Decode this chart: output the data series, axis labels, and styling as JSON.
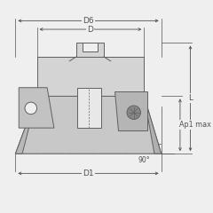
{
  "bg_color": "#efefef",
  "line_color": "#606060",
  "dim_color": "#505050",
  "body_fill": "#d4d4d4",
  "body_edge": "#606060",
  "dark_fill": "#aaaaaa",
  "light_fill": "#e2e2e2",
  "insert_fill": "#bbbbbb",
  "labels": {
    "D6": "D6",
    "D": "D",
    "D1": "D1",
    "L": "L",
    "Ap1max": "Ap1 max",
    "angle": "90°"
  },
  "fig_size": [
    2.4,
    2.4
  ],
  "dpi": 100
}
